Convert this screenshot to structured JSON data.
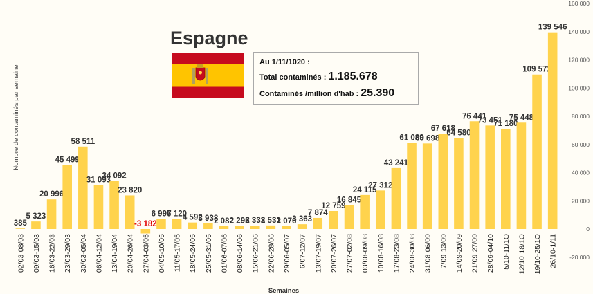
{
  "chart_data": {
    "type": "bar",
    "title": "Espagne",
    "ylabel": "Nombre de contaminés par semaine",
    "xlabel": "Semaines",
    "ylim": [
      -20000,
      160000
    ],
    "y_ticks": [
      -20000,
      0,
      20000,
      40000,
      60000,
      80000,
      100000,
      120000,
      140000,
      160000
    ],
    "y_tick_labels": [
      "-20 000",
      "0",
      "20 000",
      "40 000",
      "60 000",
      "80 000",
      "100 000",
      "120 000",
      "140 000",
      "160 000"
    ],
    "y_axis_position": "right",
    "grid": false,
    "bar_color": "#ffd34d",
    "negative_label_color": "#e00000",
    "categories": [
      "02/03-08/03",
      "09/03-15/03",
      "16/03-22/03",
      "23/03-29/03",
      "30/03-05/04",
      "06/04-12/04",
      "13/04-19/04",
      "20/04-26/04",
      "27/04-03/05",
      "04/05-10/05",
      "11/05-17/05",
      "18/05-24/05",
      "25/05-31/05",
      "01/06-07/06",
      "08/06-14/06",
      "15/06-21/06",
      "22/06-28/06",
      "29/06-05/07",
      "6/07-12/07",
      "13/07-19/07",
      "20/07-26/07",
      "27/07-02/08",
      "03/08-09/08",
      "10/08-16/08",
      "17/08-23/08",
      "24/08-30/08",
      "31/08-06/09",
      "7/09-13/09",
      "14/09-20/09",
      "21/09-27/09",
      "28/09-04/10",
      "5/10-11/1O",
      "12/10-18/1O",
      "19/10-25/1O",
      "26/10-1/11"
    ],
    "values": [
      385,
      5323,
      20996,
      45499,
      58511,
      31093,
      34092,
      23820,
      -3182,
      6996,
      7120,
      4592,
      3938,
      2082,
      2295,
      2333,
      2531,
      2076,
      3363,
      7874,
      12759,
      16845,
      24115,
      27312,
      43241,
      61089,
      60698,
      67618,
      64580,
      76441,
      73451,
      71180,
      75448,
      109572,
      139546
    ],
    "value_labels": [
      "385",
      "5 323",
      "20 996",
      "45 499",
      "58 511",
      "31 093",
      "34 092",
      "23 820",
      "-3 182",
      "6 996",
      "7 120",
      "4 592",
      "3 938",
      "2 082",
      "2 295",
      "2 333",
      "2 531",
      "2 076",
      "3 363",
      "7 874",
      "12 759",
      "16 845",
      "24 115",
      "27 312",
      "43 241",
      "61 089",
      "60 698",
      "67 618",
      "64 580",
      "76 441",
      "73 451",
      "71 180",
      "75 448",
      "109 572",
      "139 546"
    ]
  },
  "info_box": {
    "date_line": "Au 1/11/1020 :",
    "total_label": "Total contaminés : ",
    "total_value": "1.185.678",
    "permillion_label": "Contaminés /million d'hab : ",
    "permillion_value": "25.390"
  },
  "flag": {
    "red": "#c60b1e",
    "yellow": "#ffc400"
  }
}
